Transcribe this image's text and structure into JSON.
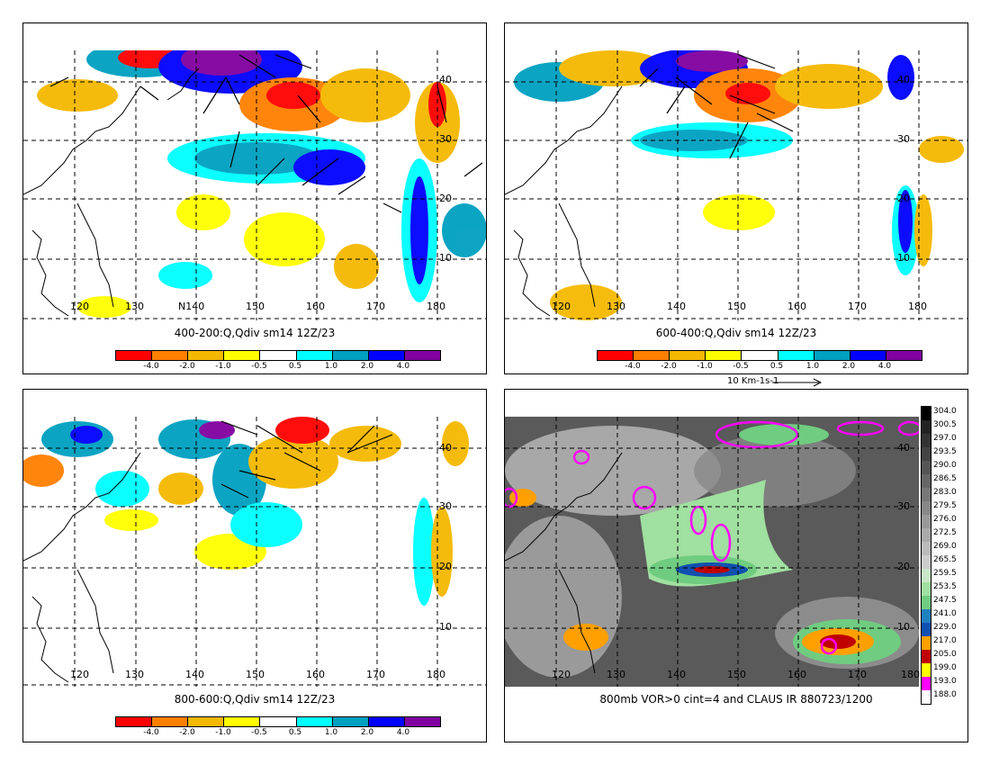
{
  "panels": [
    {
      "title": "400-200:Q,Qdiv sm14 12Z/23",
      "lon_labels": [
        "120",
        "130",
        "140",
        "150",
        "160",
        "170",
        "180"
      ],
      "lon_prefix_extra": "N",
      "lat_labels": [
        "40",
        "30",
        "20",
        "10"
      ]
    },
    {
      "title": "600-400:Q,Qdiv sm14 12Z/23",
      "lon_labels": [
        "120",
        "130",
        "140",
        "150",
        "160",
        "170",
        "180"
      ],
      "lat_labels": [
        "40",
        "30",
        "20",
        "10"
      ]
    },
    {
      "title": "800-600:Q,Qdiv sm14 12Z/23",
      "lon_labels": [
        "120",
        "130",
        "140",
        "150",
        "160",
        "170",
        "180"
      ],
      "lat_labels": [
        "40",
        "30",
        "20",
        "10"
      ]
    },
    {
      "title": "800mb VOR>0 cint=4 and CLAUS IR 880723/1200",
      "lon_labels": [
        "120",
        "130",
        "140",
        "150",
        "160",
        "170",
        "180"
      ],
      "lat_labels": [
        "40",
        "30",
        "20",
        "10"
      ]
    }
  ],
  "colorbar": {
    "labels": [
      "-4.0",
      "-2.0",
      "-1.0",
      "-0.5",
      "0.5",
      "1.0",
      "2.0",
      "4.0"
    ],
    "colors": [
      "#ff0000",
      "#ff7f00",
      "#f5b800",
      "#ffff00",
      "#ffffff",
      "#00ffff",
      "#00a0c0",
      "#0000ff",
      "#8000a0"
    ]
  },
  "vector_scale": "10 Km-1s-1",
  "ir_scale": {
    "labels": [
      "304.0",
      "300.5",
      "297.0",
      "293.5",
      "290.0",
      "286.5",
      "283.0",
      "279.5",
      "276.0",
      "272.5",
      "269.0",
      "265.5",
      "259.5",
      "253.5",
      "247.5",
      "241.0",
      "229.0",
      "217.0",
      "205.0",
      "199.0",
      "193.0",
      "188.0"
    ],
    "colors": [
      "#000000",
      "#222222",
      "#333333",
      "#444444",
      "#555555",
      "#666666",
      "#777777",
      "#888888",
      "#999999",
      "#aaaaaa",
      "#bbbbbb",
      "#cccccc",
      "#c8e8c8",
      "#a0e0a0",
      "#70cc80",
      "#2080c0",
      "#1050b0",
      "#ffa000",
      "#c00000",
      "#ffff00",
      "#ff00ff",
      "#ffffff"
    ]
  }
}
